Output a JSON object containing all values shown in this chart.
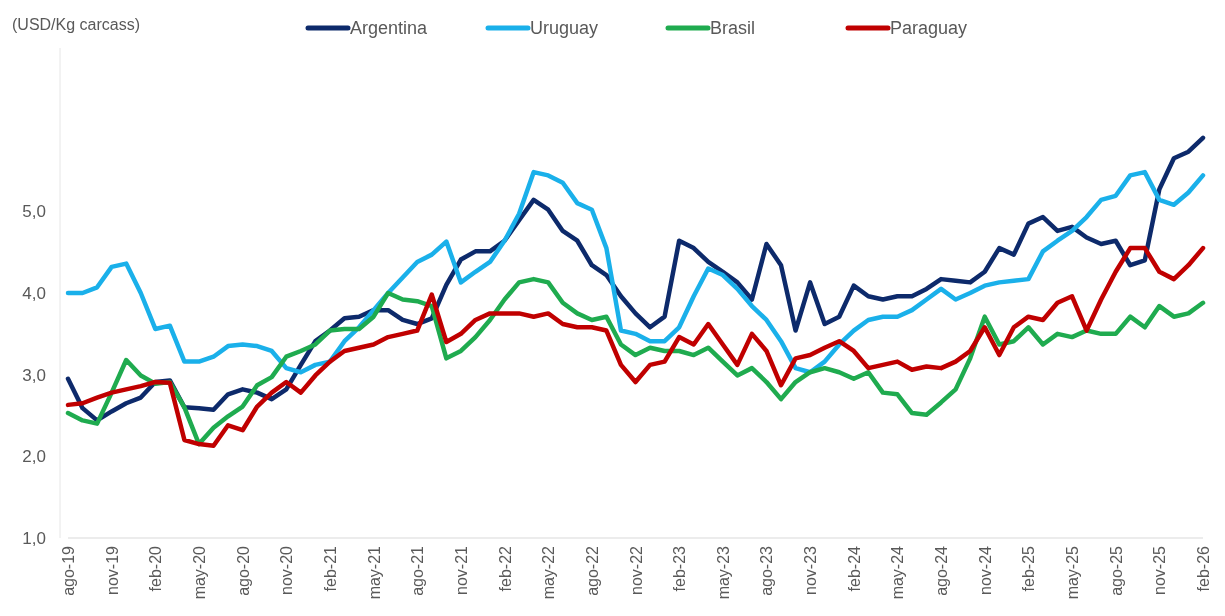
{
  "chart_data": {
    "type": "line",
    "ylabel": "(USD/Kg carcass)",
    "categories": [
      "ago-19",
      null,
      null,
      "nov-19",
      null,
      null,
      "feb-20",
      null,
      null,
      "may-20",
      null,
      null,
      "ago-20",
      null,
      null,
      "nov-20",
      null,
      null,
      "feb-21",
      null,
      null,
      "may-21",
      null,
      null,
      "ago-21",
      null,
      null,
      "nov-21",
      null,
      null,
      "feb-22",
      null,
      null,
      "may-22",
      null,
      null,
      "ago-22",
      null,
      null,
      "nov-22",
      null,
      null,
      "feb-23",
      null,
      null,
      "may-23",
      null,
      null,
      "ago-23",
      null,
      null,
      "nov-23",
      null,
      null,
      "feb-24",
      null,
      null,
      "may-24",
      null,
      null,
      "ago-24",
      null,
      null,
      "nov-24",
      null,
      null,
      "feb-25",
      null,
      null,
      "may-25",
      null,
      null,
      "ago-25",
      null,
      null,
      "nov-25",
      null,
      null,
      "feb-26"
    ],
    "series": [
      {
        "name": "Argentina",
        "color": "#0d2a6b",
        "values": [
          2.95,
          2.59,
          2.44,
          2.55,
          2.65,
          2.72,
          2.91,
          2.93,
          2.6,
          2.59,
          2.57,
          2.76,
          2.82,
          2.78,
          2.7,
          2.82,
          3.12,
          3.41,
          3.54,
          3.69,
          3.71,
          3.79,
          3.79,
          3.67,
          3.62,
          3.69,
          4.1,
          4.41,
          4.51,
          4.51,
          4.64,
          4.89,
          5.14,
          5.02,
          4.76,
          4.64,
          4.34,
          4.22,
          3.96,
          3.75,
          3.58,
          3.71,
          4.64,
          4.55,
          4.38,
          4.26,
          4.13,
          3.92,
          4.6,
          4.34,
          3.54,
          4.13,
          3.62,
          3.71,
          4.09,
          3.96,
          3.92,
          3.96,
          3.96,
          4.05,
          4.17,
          4.15,
          4.13,
          4.26,
          4.55,
          4.47,
          4.85,
          4.93,
          4.76,
          4.81,
          4.68,
          4.6,
          4.64,
          4.34,
          4.4,
          5.27,
          5.65,
          5.73,
          5.9
        ]
      },
      {
        "name": "Uruguay",
        "color": "#1ab0ea",
        "values": [
          4.0,
          4.0,
          4.07,
          4.32,
          4.36,
          4.0,
          3.56,
          3.6,
          3.16,
          3.16,
          3.22,
          3.35,
          3.37,
          3.35,
          3.29,
          3.08,
          3.03,
          3.12,
          3.16,
          3.41,
          3.58,
          3.79,
          4.0,
          4.19,
          4.38,
          4.47,
          4.63,
          4.13,
          4.26,
          4.38,
          4.64,
          4.97,
          5.48,
          5.44,
          5.35,
          5.1,
          5.02,
          4.55,
          3.54,
          3.5,
          3.41,
          3.41,
          3.58,
          3.96,
          4.3,
          4.22,
          4.05,
          3.84,
          3.67,
          3.41,
          3.08,
          3.03,
          3.16,
          3.37,
          3.54,
          3.67,
          3.71,
          3.71,
          3.79,
          3.92,
          4.05,
          3.92,
          4.0,
          4.09,
          4.13,
          4.15,
          4.17,
          4.51,
          4.64,
          4.76,
          4.93,
          5.14,
          5.19,
          5.44,
          5.48,
          5.14,
          5.08,
          5.23,
          5.44
        ]
      },
      {
        "name": "Brasil",
        "color": "#1fab4f",
        "values": [
          2.53,
          2.44,
          2.4,
          2.78,
          3.18,
          2.99,
          2.89,
          2.91,
          2.6,
          2.15,
          2.35,
          2.49,
          2.61,
          2.87,
          2.97,
          3.22,
          3.29,
          3.37,
          3.54,
          3.56,
          3.56,
          3.71,
          4.0,
          3.92,
          3.9,
          3.84,
          3.2,
          3.29,
          3.46,
          3.67,
          3.92,
          4.13,
          4.17,
          4.13,
          3.88,
          3.75,
          3.67,
          3.71,
          3.37,
          3.24,
          3.33,
          3.29,
          3.29,
          3.24,
          3.33,
          3.16,
          2.99,
          3.08,
          2.91,
          2.7,
          2.91,
          3.03,
          3.08,
          3.03,
          2.95,
          3.03,
          2.78,
          2.76,
          2.53,
          2.51,
          2.66,
          2.82,
          3.2,
          3.71,
          3.37,
          3.41,
          3.58,
          3.37,
          3.5,
          3.46,
          3.54,
          3.5,
          3.5,
          3.71,
          3.58,
          3.84,
          3.71,
          3.75,
          3.88
        ]
      },
      {
        "name": "Paraguay",
        "color": "#c00000",
        "values": [
          2.63,
          2.65,
          2.72,
          2.78,
          2.82,
          2.86,
          2.91,
          2.9,
          2.2,
          2.15,
          2.13,
          2.38,
          2.32,
          2.61,
          2.78,
          2.91,
          2.78,
          2.99,
          3.16,
          3.29,
          3.33,
          3.37,
          3.46,
          3.5,
          3.54,
          3.98,
          3.4,
          3.5,
          3.67,
          3.75,
          3.75,
          3.75,
          3.71,
          3.75,
          3.62,
          3.58,
          3.58,
          3.54,
          3.12,
          2.91,
          3.12,
          3.16,
          3.46,
          3.37,
          3.62,
          3.37,
          3.12,
          3.5,
          3.29,
          2.87,
          3.2,
          3.24,
          3.33,
          3.41,
          3.29,
          3.08,
          3.12,
          3.16,
          3.06,
          3.1,
          3.08,
          3.16,
          3.29,
          3.58,
          3.24,
          3.58,
          3.71,
          3.67,
          3.88,
          3.96,
          3.54,
          3.92,
          4.26,
          4.55,
          4.55,
          4.26,
          4.17,
          4.34,
          4.55
        ]
      }
    ],
    "ylim": [
      1,
      7
    ],
    "yticks": [
      {
        "value": 1,
        "label": "1,0"
      },
      {
        "value": 2,
        "label": "2,0"
      },
      {
        "value": 3,
        "label": "3,0"
      },
      {
        "value": 4,
        "label": "4,0"
      },
      {
        "value": 5,
        "label": "5,0"
      }
    ],
    "grid": false,
    "legend": "top",
    "marker": "none",
    "line_style": "solid"
  }
}
